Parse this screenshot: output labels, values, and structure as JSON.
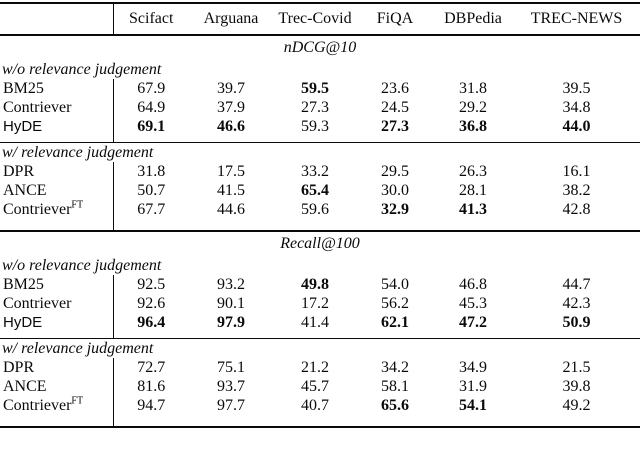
{
  "page": {
    "background_color": "#ffffff",
    "text_color": "#0a0a0a",
    "rule_color": "#0a0a0a"
  },
  "table": {
    "header": {
      "corner_label": "",
      "columns": [
        "Scifact",
        "Arguana",
        "Trec-Covid",
        "FiQA",
        "DBPedia",
        "TREC-NEWS"
      ]
    },
    "sections": [
      {
        "metric": "nDCG@10",
        "groups": [
          {
            "label": "w/o relevance judgement",
            "rows": [
              {
                "model": "BM25",
                "sup": "",
                "model_font": "serif",
                "values": [
                  "67.9",
                  "39.7",
                  "59.5",
                  "23.6",
                  "31.8",
                  "39.5"
                ],
                "bold": [
                  0,
                  0,
                  1,
                  0,
                  0,
                  0
                ]
              },
              {
                "model": "Contriever",
                "sup": "",
                "model_font": "serif",
                "values": [
                  "64.9",
                  "37.9",
                  "27.3",
                  "24.5",
                  "29.2",
                  "34.8"
                ],
                "bold": [
                  0,
                  0,
                  0,
                  0,
                  0,
                  0
                ]
              },
              {
                "model": "HyDE",
                "sup": "",
                "model_font": "sans",
                "values": [
                  "69.1",
                  "46.6",
                  "59.3",
                  "27.3",
                  "36.8",
                  "44.0"
                ],
                "bold": [
                  1,
                  1,
                  0,
                  1,
                  1,
                  1
                ]
              }
            ]
          },
          {
            "label": "w/ relevance judgement",
            "rows": [
              {
                "model": "DPR",
                "sup": "",
                "model_font": "serif",
                "values": [
                  "31.8",
                  "17.5",
                  "33.2",
                  "29.5",
                  "26.3",
                  "16.1"
                ],
                "bold": [
                  0,
                  0,
                  0,
                  0,
                  0,
                  0
                ]
              },
              {
                "model": "ANCE",
                "sup": "",
                "model_font": "serif",
                "values": [
                  "50.7",
                  "41.5",
                  "65.4",
                  "30.0",
                  "28.1",
                  "38.2"
                ],
                "bold": [
                  0,
                  0,
                  1,
                  0,
                  0,
                  0
                ]
              },
              {
                "model": "Contriever",
                "sup": "FT",
                "model_font": "serif",
                "values": [
                  "67.7",
                  "44.6",
                  "59.6",
                  "32.9",
                  "41.3",
                  "42.8"
                ],
                "bold": [
                  0,
                  0,
                  0,
                  1,
                  1,
                  0
                ]
              }
            ]
          }
        ]
      },
      {
        "metric": "Recall@100",
        "groups": [
          {
            "label": "w/o relevance judgement",
            "rows": [
              {
                "model": "BM25",
                "sup": "",
                "model_font": "serif",
                "values": [
                  "92.5",
                  "93.2",
                  "49.8",
                  "54.0",
                  "46.8",
                  "44.7"
                ],
                "bold": [
                  0,
                  0,
                  1,
                  0,
                  0,
                  0
                ]
              },
              {
                "model": "Contriever",
                "sup": "",
                "model_font": "serif",
                "values": [
                  "92.6",
                  "90.1",
                  "17.2",
                  "56.2",
                  "45.3",
                  "42.3"
                ],
                "bold": [
                  0,
                  0,
                  0,
                  0,
                  0,
                  0
                ]
              },
              {
                "model": "HyDE",
                "sup": "",
                "model_font": "sans",
                "values": [
                  "96.4",
                  "97.9",
                  "41.4",
                  "62.1",
                  "47.2",
                  "50.9"
                ],
                "bold": [
                  1,
                  1,
                  0,
                  1,
                  1,
                  1
                ]
              }
            ]
          },
          {
            "label": "w/ relevance judgement",
            "rows": [
              {
                "model": "DPR",
                "sup": "",
                "model_font": "serif",
                "values": [
                  "72.7",
                  "75.1",
                  "21.2",
                  "34.2",
                  "34.9",
                  "21.5"
                ],
                "bold": [
                  0,
                  0,
                  0,
                  0,
                  0,
                  0
                ]
              },
              {
                "model": "ANCE",
                "sup": "",
                "model_font": "serif",
                "values": [
                  "81.6",
                  "93.7",
                  "45.7",
                  "58.1",
                  "31.9",
                  "39.8"
                ],
                "bold": [
                  0,
                  0,
                  0,
                  0,
                  0,
                  0
                ]
              },
              {
                "model": "Contriever",
                "sup": "FT",
                "model_font": "serif",
                "values": [
                  "94.7",
                  "97.7",
                  "40.7",
                  "65.6",
                  "54.1",
                  "49.2"
                ],
                "bold": [
                  0,
                  0,
                  0,
                  1,
                  1,
                  0
                ]
              }
            ]
          }
        ]
      }
    ]
  }
}
